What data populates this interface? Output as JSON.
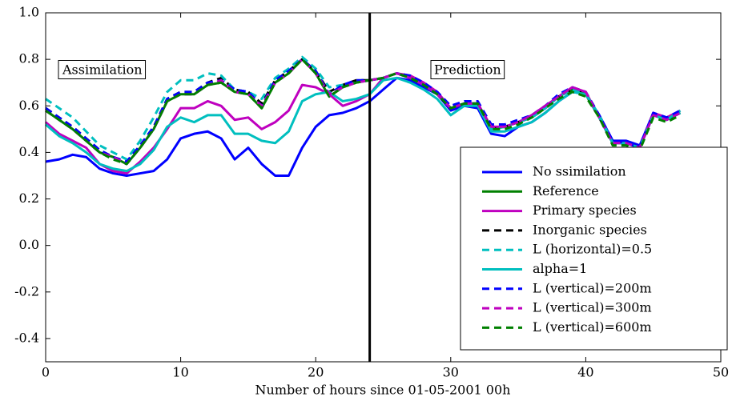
{
  "chart_data": {
    "type": "line",
    "xlabel": "Number of hours since 01-05-2001 00h",
    "annotations": [
      "Assimilation",
      "Prediction"
    ],
    "vline": 24,
    "xlim": [
      0,
      50
    ],
    "xticks": [
      0,
      10,
      20,
      30,
      40,
      50
    ],
    "ylim": [
      -0.5,
      1.0
    ],
    "yticks": [
      -0.4,
      -0.2,
      {
        "value": 0,
        "label": "0.0"
      },
      0.2,
      0.4,
      0.6,
      0.8,
      {
        "value": 1,
        "label": "1.0"
      }
    ],
    "legend": "lower right",
    "x": [
      0,
      1,
      2,
      3,
      4,
      5,
      6,
      7,
      8,
      9,
      10,
      11,
      12,
      13,
      14,
      15,
      16,
      17,
      18,
      19,
      20,
      21,
      22,
      23,
      24,
      25,
      26,
      27,
      28,
      29,
      30,
      31,
      32,
      33,
      34,
      35,
      36,
      37,
      38,
      39,
      40,
      41,
      42,
      43,
      44,
      45,
      46,
      47
    ],
    "series": [
      {
        "name": "No ssimilation",
        "color": "#0000ff",
        "dashed": false,
        "values": [
          0.36,
          0.37,
          0.39,
          0.38,
          0.33,
          0.31,
          0.3,
          0.31,
          0.32,
          0.37,
          0.46,
          0.48,
          0.49,
          0.46,
          0.37,
          0.42,
          0.35,
          0.3,
          0.3,
          0.42,
          0.51,
          0.56,
          0.57,
          0.59,
          0.62,
          0.67,
          0.72,
          0.71,
          0.68,
          0.65,
          0.58,
          0.6,
          0.59,
          0.48,
          0.47,
          0.51,
          0.53,
          0.57,
          0.62,
          0.66,
          0.65,
          0.56,
          0.45,
          0.45,
          0.43,
          0.57,
          0.54,
          0.57
        ]
      },
      {
        "name": "Reference",
        "color": "#008000",
        "dashed": false,
        "values": [
          0.58,
          0.54,
          0.5,
          0.45,
          0.4,
          0.38,
          0.35,
          0.42,
          0.5,
          0.62,
          0.65,
          0.65,
          0.69,
          0.7,
          0.66,
          0.65,
          0.59,
          0.7,
          0.74,
          0.8,
          0.74,
          0.64,
          0.68,
          0.7,
          0.71,
          0.72,
          0.74,
          0.72,
          0.69,
          0.65,
          0.59,
          0.61,
          0.61,
          0.5,
          0.51,
          0.53,
          0.55,
          0.59,
          0.64,
          0.67,
          0.65,
          0.55,
          0.44,
          0.44,
          0.42,
          0.56,
          0.54,
          0.57
        ]
      },
      {
        "name": "Primary species",
        "color": "#bf00bf",
        "dashed": false,
        "values": [
          0.53,
          0.48,
          0.45,
          0.42,
          0.35,
          0.32,
          0.31,
          0.36,
          0.42,
          0.5,
          0.59,
          0.59,
          0.62,
          0.6,
          0.54,
          0.55,
          0.5,
          0.53,
          0.58,
          0.69,
          0.68,
          0.65,
          0.6,
          0.62,
          0.65,
          0.72,
          0.74,
          0.73,
          0.7,
          0.66,
          0.59,
          0.61,
          0.61,
          0.51,
          0.51,
          0.53,
          0.56,
          0.6,
          0.64,
          0.68,
          0.66,
          0.55,
          0.44,
          0.44,
          0.42,
          0.57,
          0.55,
          0.58
        ]
      },
      {
        "name": "Inorganic species",
        "color": "#000000",
        "dashed": true,
        "values": [
          0.59,
          0.55,
          0.51,
          0.46,
          0.41,
          0.38,
          0.36,
          0.43,
          0.51,
          0.63,
          0.66,
          0.66,
          0.7,
          0.72,
          0.67,
          0.66,
          0.61,
          0.71,
          0.75,
          0.8,
          0.75,
          0.66,
          0.69,
          0.71,
          0.71,
          0.72,
          0.74,
          0.72,
          0.69,
          0.65,
          0.59,
          0.61,
          0.61,
          0.5,
          0.51,
          0.53,
          0.55,
          0.59,
          0.64,
          0.67,
          0.65,
          0.55,
          0.44,
          0.44,
          0.42,
          0.56,
          0.54,
          0.57
        ]
      },
      {
        "name": "L (horizontal)=0.5",
        "color": "#00bfbf",
        "dashed": true,
        "values": [
          0.63,
          0.59,
          0.55,
          0.49,
          0.43,
          0.4,
          0.37,
          0.45,
          0.55,
          0.66,
          0.71,
          0.71,
          0.74,
          0.73,
          0.67,
          0.66,
          0.63,
          0.72,
          0.76,
          0.81,
          0.76,
          0.68,
          0.69,
          0.7,
          0.71,
          0.72,
          0.74,
          0.72,
          0.69,
          0.65,
          0.59,
          0.61,
          0.61,
          0.5,
          0.51,
          0.53,
          0.55,
          0.59,
          0.64,
          0.67,
          0.65,
          0.55,
          0.44,
          0.44,
          0.42,
          0.56,
          0.54,
          0.57
        ]
      },
      {
        "name": "alpha=1",
        "color": "#00bfbf",
        "dashed": false,
        "values": [
          0.52,
          0.47,
          0.44,
          0.4,
          0.35,
          0.33,
          0.32,
          0.35,
          0.41,
          0.51,
          0.55,
          0.53,
          0.56,
          0.56,
          0.48,
          0.48,
          0.45,
          0.44,
          0.49,
          0.62,
          0.65,
          0.66,
          0.62,
          0.63,
          0.65,
          0.71,
          0.72,
          0.7,
          0.67,
          0.63,
          0.56,
          0.6,
          0.6,
          0.49,
          0.49,
          0.51,
          0.53,
          0.57,
          0.62,
          0.66,
          0.65,
          0.56,
          0.44,
          0.44,
          0.42,
          0.56,
          0.54,
          0.58
        ]
      },
      {
        "name": "L (vertical)=200m",
        "color": "#0000ff",
        "dashed": true,
        "values": [
          0.59,
          0.55,
          0.51,
          0.46,
          0.41,
          0.38,
          0.36,
          0.43,
          0.51,
          0.63,
          0.66,
          0.66,
          0.7,
          0.71,
          0.67,
          0.66,
          0.6,
          0.71,
          0.75,
          0.8,
          0.75,
          0.65,
          0.69,
          0.71,
          0.71,
          0.72,
          0.74,
          0.73,
          0.7,
          0.66,
          0.6,
          0.62,
          0.62,
          0.52,
          0.52,
          0.54,
          0.56,
          0.6,
          0.65,
          0.68,
          0.66,
          0.56,
          0.45,
          0.44,
          0.42,
          0.57,
          0.55,
          0.58
        ]
      },
      {
        "name": "L (vertical)=300m",
        "color": "#bf00bf",
        "dashed": true,
        "values": [
          0.58,
          0.54,
          0.5,
          0.45,
          0.4,
          0.38,
          0.35,
          0.42,
          0.5,
          0.62,
          0.65,
          0.65,
          0.69,
          0.71,
          0.66,
          0.65,
          0.6,
          0.7,
          0.74,
          0.8,
          0.74,
          0.65,
          0.68,
          0.7,
          0.71,
          0.72,
          0.74,
          0.72,
          0.69,
          0.65,
          0.59,
          0.61,
          0.61,
          0.51,
          0.51,
          0.53,
          0.56,
          0.6,
          0.64,
          0.68,
          0.66,
          0.55,
          0.44,
          0.44,
          0.42,
          0.56,
          0.54,
          0.57
        ]
      },
      {
        "name": "L (vertical)=600m",
        "color": "#008000",
        "dashed": true,
        "values": [
          0.58,
          0.54,
          0.5,
          0.45,
          0.4,
          0.37,
          0.35,
          0.42,
          0.5,
          0.62,
          0.65,
          0.65,
          0.69,
          0.7,
          0.66,
          0.65,
          0.59,
          0.7,
          0.74,
          0.8,
          0.74,
          0.64,
          0.68,
          0.7,
          0.71,
          0.72,
          0.74,
          0.72,
          0.69,
          0.65,
          0.59,
          0.61,
          0.61,
          0.5,
          0.5,
          0.52,
          0.55,
          0.59,
          0.63,
          0.66,
          0.64,
          0.55,
          0.43,
          0.43,
          0.41,
          0.55,
          0.53,
          0.56
        ]
      }
    ]
  }
}
